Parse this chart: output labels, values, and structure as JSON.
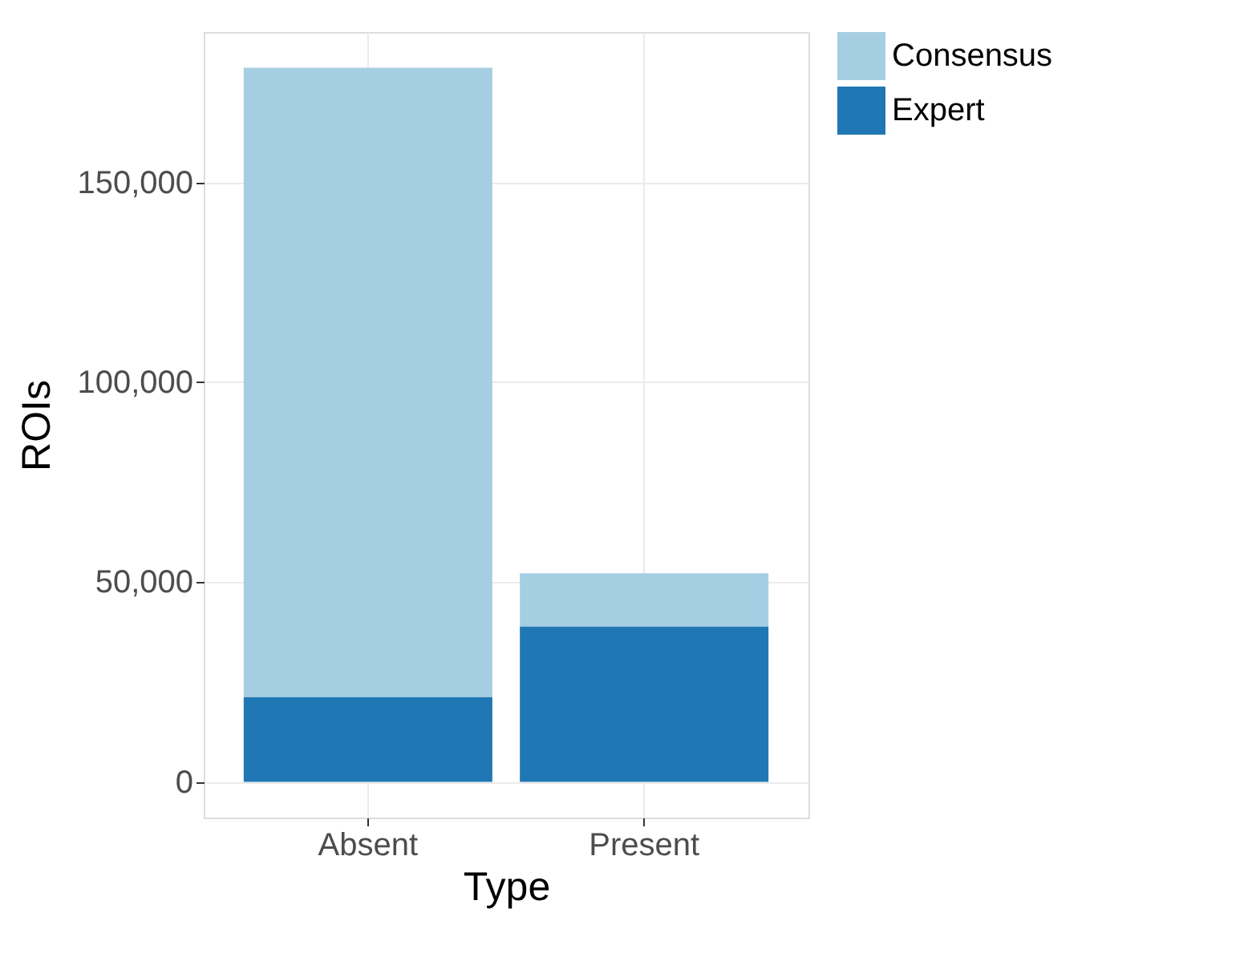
{
  "chart_data": {
    "type": "bar",
    "stacked": true,
    "xlabel": "Type",
    "ylabel": "ROIs",
    "legend": "right",
    "categories": [
      "Absent",
      "Present"
    ],
    "series": [
      {
        "name": "Expert",
        "color": "#1f78b4",
        "values": [
          21300,
          38900
        ]
      },
      {
        "name": "Consensus",
        "color": "#a6cee3",
        "values": [
          157400,
          13300
        ]
      }
    ],
    "ylim": [
      -8900,
      187600
    ],
    "yticks": [
      0,
      {
        "value": 50000,
        "label": "50,000"
      },
      {
        "value": 100000,
        "label": "100,000"
      },
      {
        "value": 150000,
        "label": "150,000"
      }
    ],
    "grid": true
  }
}
